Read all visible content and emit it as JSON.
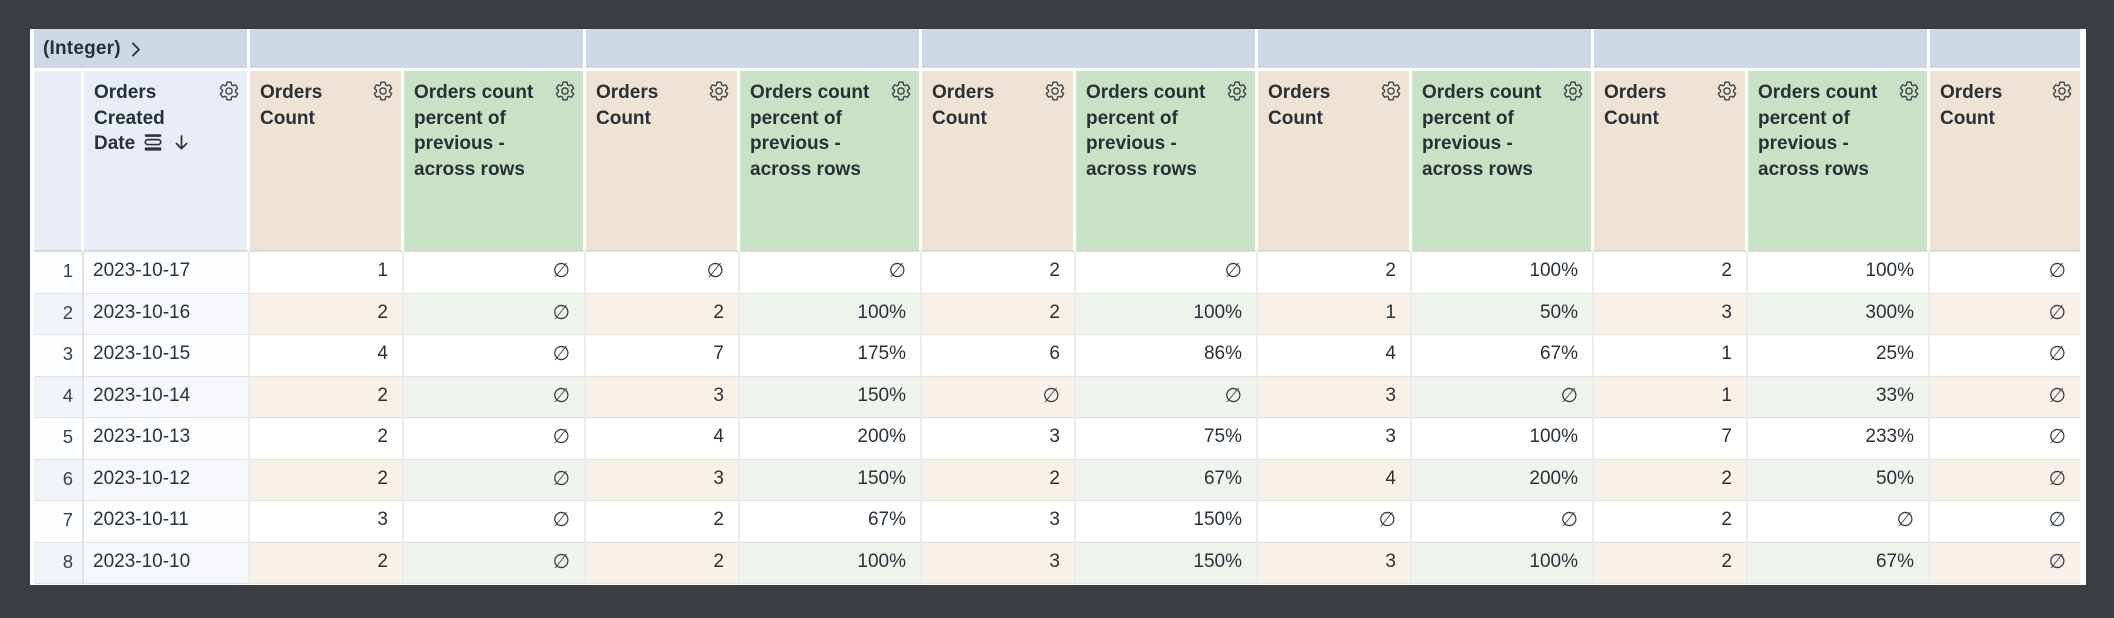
{
  "pivot_band": {
    "field_label": "(Integer)",
    "expand_icon": "chevron-right-icon",
    "group_values": [
      "",
      "",
      "",
      "",
      ""
    ],
    "partial_group_value": ""
  },
  "headers": {
    "row_number": "",
    "date": "Orders Created Date",
    "count": "Orders Count",
    "percent": "Orders count percent of previous - across rows",
    "sort_icon": "arrow-down-icon",
    "date_granularity_icon": "date-granularity-icon",
    "settings_icon": "gear-icon"
  },
  "table": {
    "null_symbol": "∅",
    "measure_columns": [
      "count",
      "percent",
      "count",
      "percent",
      "count",
      "percent",
      "count",
      "percent",
      "count",
      "percent",
      "count"
    ],
    "rows": [
      {
        "num": "1",
        "date": "2023-10-17",
        "values": [
          "1",
          "∅",
          "∅",
          "∅",
          "2",
          "∅",
          "2",
          "100%",
          "2",
          "100%",
          "∅"
        ]
      },
      {
        "num": "2",
        "date": "2023-10-16",
        "values": [
          "2",
          "∅",
          "2",
          "100%",
          "2",
          "100%",
          "1",
          "50%",
          "3",
          "300%",
          "∅"
        ]
      },
      {
        "num": "3",
        "date": "2023-10-15",
        "values": [
          "4",
          "∅",
          "7",
          "175%",
          "6",
          "86%",
          "4",
          "67%",
          "1",
          "25%",
          "∅"
        ]
      },
      {
        "num": "4",
        "date": "2023-10-14",
        "values": [
          "2",
          "∅",
          "3",
          "150%",
          "∅",
          "∅",
          "3",
          "∅",
          "1",
          "33%",
          "∅"
        ]
      },
      {
        "num": "5",
        "date": "2023-10-13",
        "values": [
          "2",
          "∅",
          "4",
          "200%",
          "3",
          "75%",
          "3",
          "100%",
          "7",
          "233%",
          "∅"
        ]
      },
      {
        "num": "6",
        "date": "2023-10-12",
        "values": [
          "2",
          "∅",
          "3",
          "150%",
          "2",
          "67%",
          "4",
          "200%",
          "2",
          "50%",
          "∅"
        ]
      },
      {
        "num": "7",
        "date": "2023-10-11",
        "values": [
          "3",
          "∅",
          "2",
          "67%",
          "3",
          "150%",
          "∅",
          "∅",
          "2",
          "∅",
          "∅"
        ]
      },
      {
        "num": "8",
        "date": "2023-10-10",
        "values": [
          "2",
          "∅",
          "2",
          "100%",
          "3",
          "150%",
          "3",
          "100%",
          "2",
          "67%",
          "∅"
        ]
      }
    ]
  },
  "colors": {
    "frame_bg": "#3a3e43",
    "pivot_band_bg": "#ccd8e4",
    "date_header_bg": "#e9eef6",
    "count_header_bg": "#eee3d4",
    "percent_header_bg": "#c9e1c4"
  }
}
